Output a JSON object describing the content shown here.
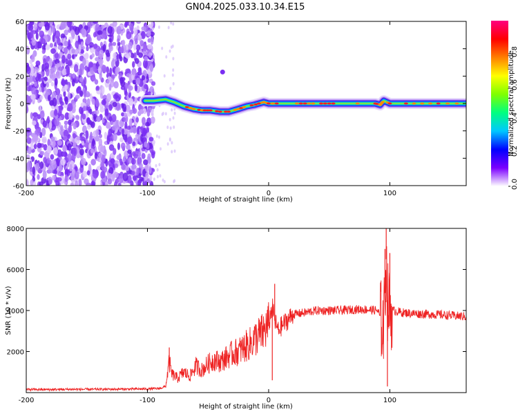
{
  "title": "GN04.2025.033.10.34.E15",
  "chart_data": [
    {
      "type": "heatmap",
      "xlabel": "Height of straight line (km)",
      "ylabel": "Frequency (Hz)",
      "xlim": [
        -200,
        163
      ],
      "ylim": [
        -60,
        60
      ],
      "xticks": [
        -200,
        -100,
        0,
        100
      ],
      "yticks": [
        -60,
        -40,
        -20,
        0,
        20,
        40,
        60
      ],
      "colorbar": {
        "label": "Normalized spectral amplitude",
        "range": [
          0,
          1
        ],
        "ticks": [
          "0.0",
          "0.2",
          "0.4",
          "0.6",
          "0.8"
        ],
        "tick_values": [
          0.0,
          0.2,
          0.4,
          0.6,
          0.8
        ],
        "colormap": [
          "#ffffff",
          "#7b00ff",
          "#0000ff",
          "#00c8ff",
          "#00ff80",
          "#7fff00",
          "#ffff00",
          "#ff8000",
          "#ff0000",
          "#ff0080"
        ]
      },
      "noise_region_x": [
        -200,
        -95
      ],
      "ridge": {
        "x": [
          -102,
          -95,
          -85,
          -78,
          -70,
          -62,
          -55,
          -48,
          -40,
          -33,
          -25,
          -18,
          -12,
          -8,
          -4,
          0,
          10,
          20,
          30,
          40,
          50,
          60,
          70,
          80,
          88,
          92,
          95,
          100,
          120,
          140,
          163
        ],
        "freq": [
          2,
          2,
          3,
          1,
          -2,
          -4,
          -5,
          -5,
          -6,
          -6,
          -4,
          -2,
          -1,
          0,
          1,
          0,
          0,
          0,
          0,
          0,
          0,
          0,
          0,
          0,
          0,
          -1,
          2,
          0,
          0,
          0,
          0
        ]
      }
    },
    {
      "type": "line",
      "xlabel": "Height of straight line (km)",
      "ylabel": "SNR (10 * v/v)",
      "xlim": [
        -200,
        163
      ],
      "ylim": [
        0,
        8000
      ],
      "xticks": [
        -200,
        -100,
        0,
        100
      ],
      "yticks": [
        2000,
        4000,
        6000,
        8000
      ],
      "color": "#ee2222",
      "series": [
        {
          "x": [
            -200,
            -180,
            -160,
            -140,
            -120,
            -100,
            -90,
            -85,
            -82,
            -80,
            -75,
            -70,
            -65,
            -60,
            -55,
            -50,
            -45,
            -40,
            -35,
            -30,
            -25,
            -20,
            -15,
            -10,
            -5,
            0,
            3,
            5,
            8,
            10,
            15,
            20,
            30,
            40,
            50,
            60,
            70,
            80,
            90,
            95,
            97,
            98,
            100,
            103,
            110,
            120,
            140,
            163
          ],
          "y": [
            150,
            150,
            160,
            160,
            170,
            180,
            200,
            300,
            1500,
            900,
            700,
            1000,
            800,
            1300,
            1100,
            1400,
            1600,
            1500,
            1700,
            1900,
            2000,
            2200,
            2400,
            2700,
            2900,
            3300,
            4200,
            3500,
            3000,
            3200,
            3500,
            3800,
            3900,
            4000,
            4000,
            4000,
            4050,
            4050,
            4000,
            3200,
            6500,
            4500,
            4000,
            4000,
            3900,
            3850,
            3800,
            3700
          ]
        }
      ]
    }
  ]
}
